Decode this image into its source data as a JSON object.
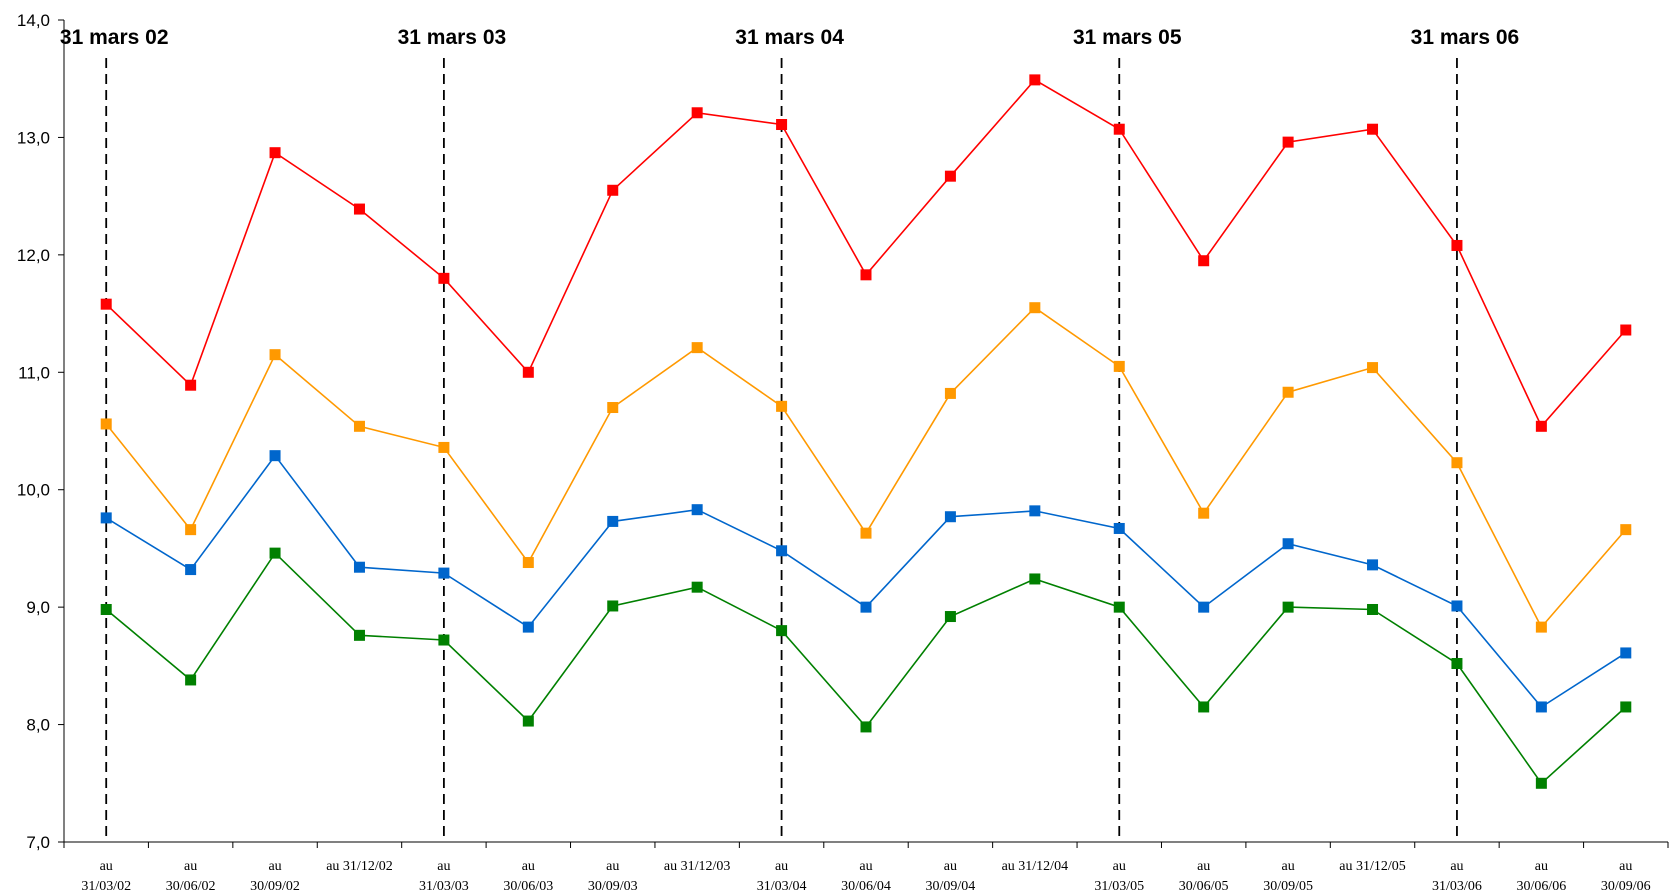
{
  "chart_data": {
    "type": "line",
    "title": "",
    "xlabel": "",
    "ylabel": "",
    "ylim": [
      7.0,
      14.0
    ],
    "yticks": [
      7.0,
      8.0,
      9.0,
      10.0,
      11.0,
      12.0,
      13.0,
      14.0
    ],
    "ytick_labels": [
      "7,0",
      "8,0",
      "9,0",
      "10,0",
      "11,0",
      "12,0",
      "13,0",
      "14,0"
    ],
    "grid": false,
    "legend": "none",
    "categories": [
      "au 31/03/02",
      "au 30/06/02",
      "au 30/09/02",
      "au 31/12/02",
      "au 31/03/03",
      "au 30/06/03",
      "au 30/09/03",
      "au 31/12/03",
      "au 31/03/04",
      "au 30/06/04",
      "au 30/09/04",
      "au 31/12/04",
      "au 31/03/05",
      "au 30/06/05",
      "au 30/09/05",
      "au 31/12/05",
      "au 31/03/06",
      "au 30/06/06",
      "au 30/09/06"
    ],
    "category_labels": [
      [
        "au",
        "31/03/02"
      ],
      [
        "au",
        "30/06/02"
      ],
      [
        "au",
        "30/09/02"
      ],
      [
        "au 31/12/02"
      ],
      [
        "au",
        "31/03/03"
      ],
      [
        "au",
        "30/06/03"
      ],
      [
        "au",
        "30/09/03"
      ],
      [
        "au 31/12/03"
      ],
      [
        "au",
        "31/03/04"
      ],
      [
        "au",
        "30/06/04"
      ],
      [
        "au",
        "30/09/04"
      ],
      [
        "au 31/12/04"
      ],
      [
        "au",
        "31/03/05"
      ],
      [
        "au",
        "30/06/05"
      ],
      [
        "au",
        "30/09/05"
      ],
      [
        "au 31/12/05"
      ],
      [
        "au",
        "31/03/06"
      ],
      [
        "au",
        "30/06/06"
      ],
      [
        "au",
        "30/09/06"
      ]
    ],
    "series": [
      {
        "color": "#ff0000",
        "values": [
          11.58,
          10.89,
          12.87,
          12.39,
          11.8,
          11.0,
          12.55,
          13.21,
          13.11,
          11.83,
          12.67,
          13.49,
          13.07,
          11.95,
          12.96,
          13.07,
          12.08,
          10.54,
          11.36
        ]
      },
      {
        "color": "#ff9900",
        "values": [
          10.56,
          9.66,
          11.15,
          10.54,
          10.36,
          9.38,
          10.7,
          11.21,
          10.71,
          9.63,
          10.82,
          11.55,
          11.05,
          9.8,
          10.83,
          11.04,
          10.23,
          8.83,
          9.66
        ]
      },
      {
        "color": "#0066cc",
        "values": [
          9.76,
          9.32,
          10.29,
          9.34,
          9.29,
          8.83,
          9.73,
          9.83,
          9.48,
          9.0,
          9.77,
          9.82,
          9.67,
          9.0,
          9.54,
          9.36,
          9.01,
          8.15,
          8.61
        ]
      },
      {
        "color": "#008000",
        "values": [
          8.98,
          8.38,
          9.46,
          8.76,
          8.72,
          8.03,
          9.01,
          9.17,
          8.8,
          7.98,
          8.92,
          9.24,
          9.0,
          8.15,
          9.0,
          8.98,
          8.52,
          7.5,
          8.15
        ]
      }
    ],
    "annotations": [
      {
        "text": "31 mars 02",
        "at_index": 0
      },
      {
        "text": "31 mars 03",
        "at_index": 4
      },
      {
        "text": "31 mars 04",
        "at_index": 8
      },
      {
        "text": "31 mars 05",
        "at_index": 12
      },
      {
        "text": "31 mars 06",
        "at_index": 16
      }
    ]
  }
}
